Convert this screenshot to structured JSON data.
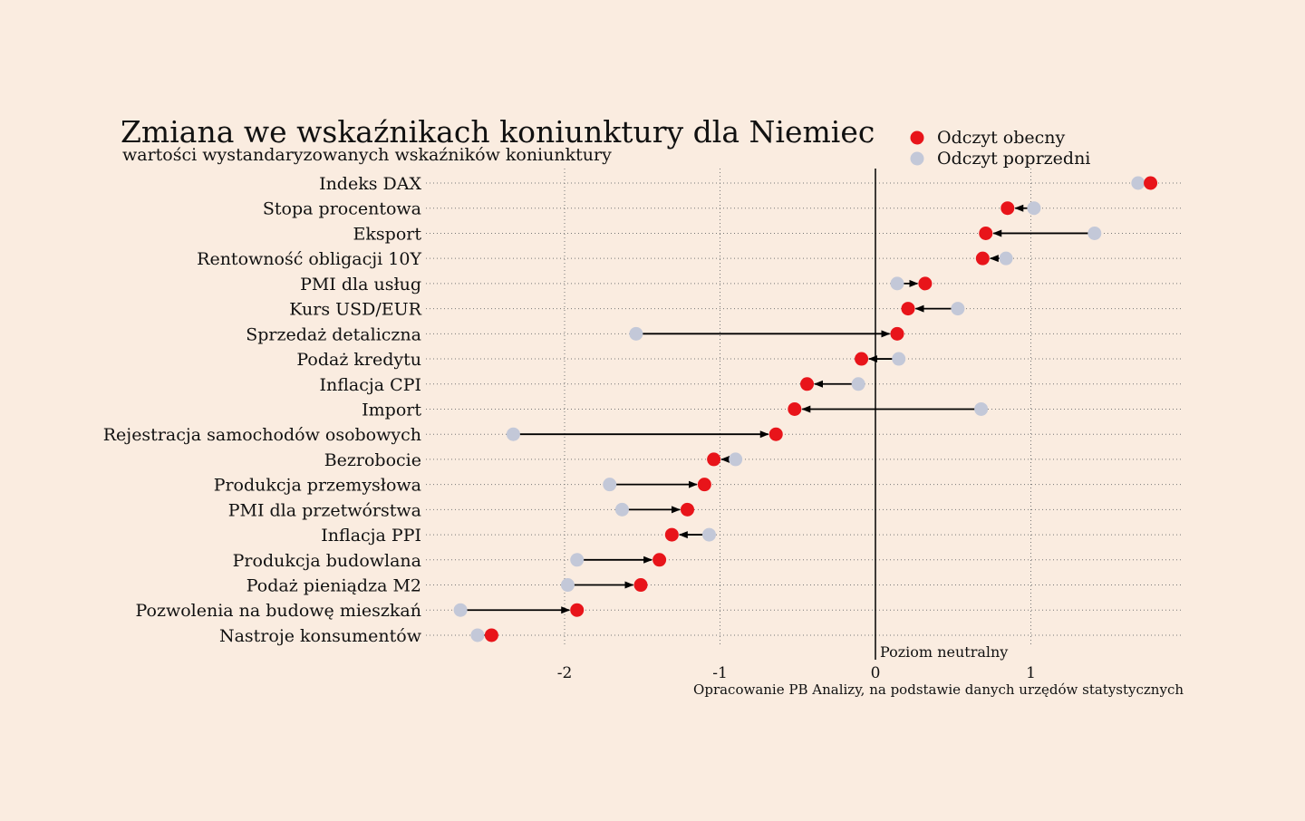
{
  "chart_data": {
    "type": "dumbbell",
    "title": "Zmiana we wskaźnikach koniunktury dla Niemiec",
    "subtitle": "wartości wystandaryzowanych wskaźników koniunktury",
    "source": "Opracowanie PB Analizy, na podstawie danych urzędów statystycznych",
    "reference_line": {
      "x": 0,
      "label": "Poziom neutralny"
    },
    "xlim": [
      -2.9,
      1.97
    ],
    "xticks": [
      -2,
      -1,
      0,
      1
    ],
    "xtick_labels": [
      "-2",
      "-1",
      "0",
      "1"
    ],
    "grid": {
      "vertical": true,
      "horizontal_dotted": true
    },
    "legend": {
      "placement": "top-right",
      "items": [
        {
          "name": "Odczyt obecny",
          "color": "#e8141a"
        },
        {
          "name": "Odczyt poprzedni",
          "color": "#c3c8d8"
        }
      ]
    },
    "categories": [
      "Indeks DAX",
      "Stopa procentowa",
      "Eksport",
      "Rentowność obligacji 10Y",
      "PMI dla usług",
      "Kurs USD/EUR",
      "Sprzedaż detaliczna",
      "Podaż kredytu",
      "Inflacja CPI",
      "Import",
      "Rejestracja samochodów osobowych",
      "Bezrobocie",
      "Produkcja przemysłowa",
      "PMI dla przetwórstwa",
      "Inflacja PPI",
      "Produkcja budowlana",
      "Podaż pieniądza M2",
      "Pozwolenia na budowę mieszkań",
      "Nastroje konsumentów"
    ],
    "series": [
      {
        "name": "Odczyt obecny",
        "color": "#e8141a",
        "values": [
          1.77,
          0.85,
          0.71,
          0.69,
          0.32,
          0.21,
          0.14,
          -0.09,
          -0.44,
          -0.52,
          -0.64,
          -1.04,
          -1.1,
          -1.21,
          -1.31,
          -1.39,
          -1.51,
          -1.92,
          -2.47
        ]
      },
      {
        "name": "Odczyt poprzedni",
        "color": "#c3c8d8",
        "values": [
          1.69,
          1.02,
          1.41,
          0.84,
          0.14,
          0.53,
          -1.54,
          0.15,
          -0.11,
          0.68,
          -2.33,
          -0.9,
          -1.71,
          -1.63,
          -1.07,
          -1.92,
          -1.98,
          -2.67,
          -2.56
        ]
      }
    ]
  }
}
